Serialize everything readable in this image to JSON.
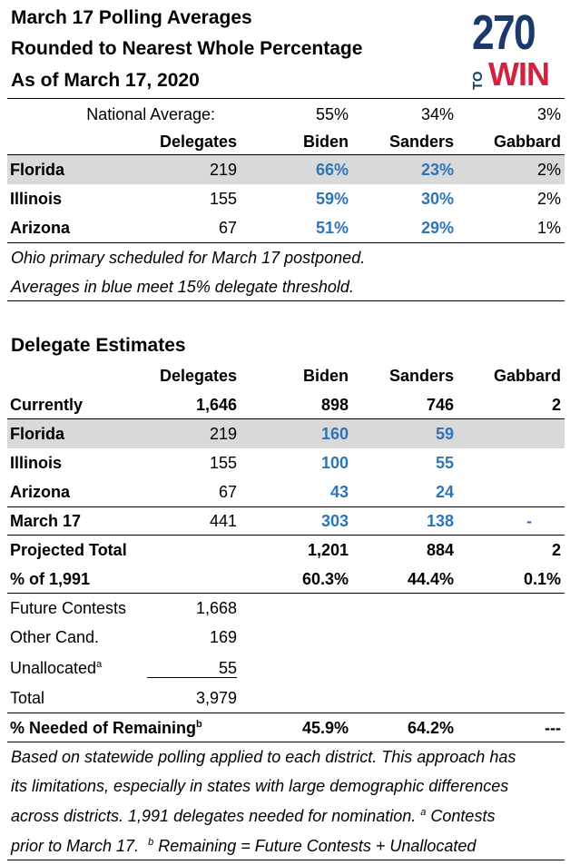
{
  "title_lines": [
    "March 17 Polling Averages",
    "Rounded to Nearest Whole Percentage",
    "As of March 17, 2020"
  ],
  "logo": {
    "number": "270",
    "to": "TO",
    "win": "WIN"
  },
  "polling": {
    "national": {
      "label": "National Average:",
      "biden": "55%",
      "sanders": "34%",
      "gabbard": "3%"
    },
    "headers": {
      "delegates": "Delegates",
      "biden": "Biden",
      "sanders": "Sanders",
      "gabbard": "Gabbard"
    },
    "rows": [
      {
        "state": "Florida",
        "delegates": "219",
        "biden": "66%",
        "sanders": "23%",
        "gabbard": "2%"
      },
      {
        "state": "Illinois",
        "delegates": "155",
        "biden": "59%",
        "sanders": "30%",
        "gabbard": "2%"
      },
      {
        "state": "Arizona",
        "delegates": "67",
        "biden": "51%",
        "sanders": "29%",
        "gabbard": "1%"
      }
    ],
    "notes": [
      "Ohio primary scheduled for March 17 postponed.",
      "Averages in blue meet 15% delegate threshold."
    ]
  },
  "estimates": {
    "title": "Delegate Estimates",
    "headers": {
      "delegates": "Delegates",
      "biden": "Biden",
      "sanders": "Sanders",
      "gabbard": "Gabbard"
    },
    "currently": {
      "label": "Currently",
      "delegates": "1,646",
      "biden": "898",
      "sanders": "746",
      "gabbard": "2"
    },
    "states": [
      {
        "state": "Florida",
        "delegates": "219",
        "biden": "160",
        "sanders": "59",
        "gabbard": ""
      },
      {
        "state": "Illinois",
        "delegates": "155",
        "biden": "100",
        "sanders": "55",
        "gabbard": ""
      },
      {
        "state": "Arizona",
        "delegates": "67",
        "biden": "43",
        "sanders": "24",
        "gabbard": ""
      }
    ],
    "march17": {
      "label": "March 17",
      "delegates": "441",
      "biden": "303",
      "sanders": "138",
      "gabbard": "-"
    },
    "projected": {
      "label": "Projected Total",
      "biden": "1,201",
      "sanders": "884",
      "gabbard": "2"
    },
    "pct": {
      "label": "% of 1,991",
      "biden": "60.3%",
      "sanders": "44.4%",
      "gabbard": "0.1%"
    },
    "breakdown": [
      {
        "label": "Future Contests",
        "value": "1,668",
        "sup": ""
      },
      {
        "label": "Other Cand.",
        "value": "169",
        "sup": ""
      },
      {
        "label": "Unallocated",
        "value": "55",
        "sup": "a"
      },
      {
        "label": "Total",
        "value": "3,979",
        "sup": ""
      }
    ],
    "needed": {
      "label": "% Needed of Remaining",
      "sup": "b",
      "biden": "45.9%",
      "sanders": "64.2%",
      "gabbard": "---"
    },
    "footnote": {
      "line1": "Based on statewide polling applied to each district. This approach has",
      "line2": "its limitations, especially in states with large demographic differences",
      "line3a": "across districts. 1,991 delegates needed for nomination.",
      "sup_a": "a",
      "line3b": " Contests",
      "line4a": "prior to March 17.",
      "sup_b": "b",
      "line4b": " Remaining = Future Contests + Unallocated"
    }
  }
}
